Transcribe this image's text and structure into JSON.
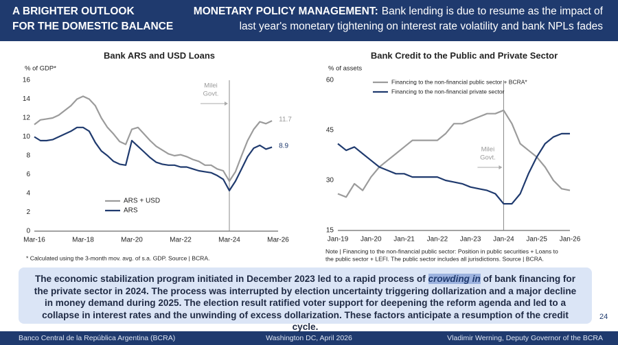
{
  "header": {
    "left_lines": [
      "A BRIGHTER OUTLOOK",
      "FOR THE DOMESTIC BALANCE"
    ],
    "title_bold": "MONETARY POLICY MANAGEMENT:",
    "title_lines": [
      "Bank lending is due to resume as the impact of",
      "last year's monetary tightening on interest rate volatility and bank NPLs fades"
    ]
  },
  "chart_data": [
    {
      "type": "line",
      "title": "Bank ARS and USD Loans",
      "y_label": "% of GDP*",
      "categories": [
        "Mar-16",
        null,
        null,
        null,
        null,
        null,
        null,
        null,
        "Mar-18",
        null,
        null,
        null,
        null,
        null,
        null,
        null,
        "Mar-20",
        null,
        null,
        null,
        null,
        null,
        null,
        null,
        "Mar-22",
        null,
        null,
        null,
        null,
        null,
        null,
        null,
        "Mar-24",
        null,
        null,
        null,
        null,
        null,
        null,
        null,
        "Mar-26"
      ],
      "series": [
        {
          "name": "ARS + USD",
          "color": "#9b9b9b",
          "values": [
            11.3,
            11.8,
            11.9,
            12.0,
            12.3,
            12.8,
            13.3,
            14.0,
            14.3,
            14.0,
            13.3,
            12.0,
            11.0,
            10.3,
            9.5,
            9.2,
            10.8,
            11.0,
            10.3,
            9.6,
            9.0,
            8.6,
            8.2,
            8.0,
            8.1,
            7.9,
            7.6,
            7.4,
            7.0,
            7.0,
            6.6,
            6.4,
            5.3,
            6.3,
            8.0,
            9.6,
            10.8,
            11.6,
            11.4,
            11.7,
            null
          ]
        },
        {
          "name": "ARS",
          "color": "#1f3a6e",
          "values": [
            10.0,
            9.6,
            9.6,
            9.7,
            10.0,
            10.3,
            10.6,
            11.0,
            11.0,
            10.6,
            9.4,
            8.5,
            8.0,
            7.4,
            7.1,
            7.0,
            9.6,
            9.0,
            8.4,
            7.8,
            7.3,
            7.1,
            7.0,
            7.0,
            6.8,
            6.8,
            6.6,
            6.4,
            6.3,
            6.2,
            5.9,
            5.5,
            4.3,
            5.3,
            6.6,
            7.9,
            8.8,
            9.1,
            8.7,
            8.9,
            null
          ]
        }
      ],
      "ylim": [
        0,
        16
      ],
      "yticks": [
        0,
        2,
        4,
        6,
        8,
        10,
        12,
        14,
        16
      ],
      "grid": false,
      "legend": "lower left",
      "end_labels": true,
      "annotation": {
        "lines": [
          "Milei",
          "Govt."
        ],
        "at": "Mar-24"
      },
      "note_lines": [
        "* Calculated using the 3-month mov. avg. of s.a. GDP. Source | BCRA."
      ]
    },
    {
      "type": "line",
      "title": "Bank Credit to the Public and Private Sector",
      "y_label": "% of assets",
      "categories": [
        "Jan-19",
        null,
        null,
        null,
        "Jan-20",
        null,
        null,
        null,
        "Jan-21",
        null,
        null,
        null,
        "Jan-22",
        null,
        null,
        null,
        "Jan-23",
        null,
        null,
        null,
        "Jan-24",
        null,
        null,
        null,
        "Jan-25",
        null,
        null,
        null,
        "Jan-26"
      ],
      "series": [
        {
          "name": "Financing to the non-financial public sector + BCRA*",
          "color": "#9b9b9b",
          "values": [
            26,
            25,
            29,
            27,
            31,
            34,
            36,
            38,
            40,
            42,
            42,
            42,
            42,
            44,
            47,
            47,
            48,
            49,
            50,
            50,
            51,
            47,
            41,
            39,
            37,
            34,
            30,
            27.5,
            27
          ]
        },
        {
          "name": "Financing to the non-financial private sector",
          "color": "#1f3a6e",
          "values": [
            41,
            39,
            40,
            38,
            36,
            34,
            33,
            32,
            32,
            31,
            31,
            31,
            31,
            30,
            29.5,
            29,
            28,
            27.5,
            27,
            26,
            23,
            23,
            26,
            32,
            37,
            41,
            43,
            44,
            44
          ]
        }
      ],
      "ylim": [
        15,
        60
      ],
      "yticks": [
        15,
        30,
        45,
        60
      ],
      "grid": false,
      "legend": "upper left",
      "end_labels": false,
      "annotation": {
        "lines": [
          "Milei",
          "Govt."
        ],
        "at": "Jan-24"
      },
      "note_lines": [
        "Note | Financing to the non-financial public sector: Position in public securities + Loans to",
        "the public sector + LEFI. The public sector includes all jurisdictions.  Source | BCRA."
      ]
    }
  ],
  "summary": {
    "before": "The economic stabilization program initiated in December 2023 led to a rapid process of ",
    "emphasis": "crowding in",
    "after": " of bank financing for the private sector in 2024. The process was interrupted by election uncertainty triggering dollarization and a major decline in money demand during 2025. The election result ratified voter support for deepening the reform agenda and led to a collapse in interest rates and the unwinding of excess dollarization. These factors anticipate a resumption of the credit cycle."
  },
  "page_number": "24",
  "footer": {
    "left": "Banco Central de la República Argentina (BCRA)",
    "center": "Washington DC, April 2026",
    "right": "Vladimir Werning, Deputy Governor of the BCRA"
  }
}
